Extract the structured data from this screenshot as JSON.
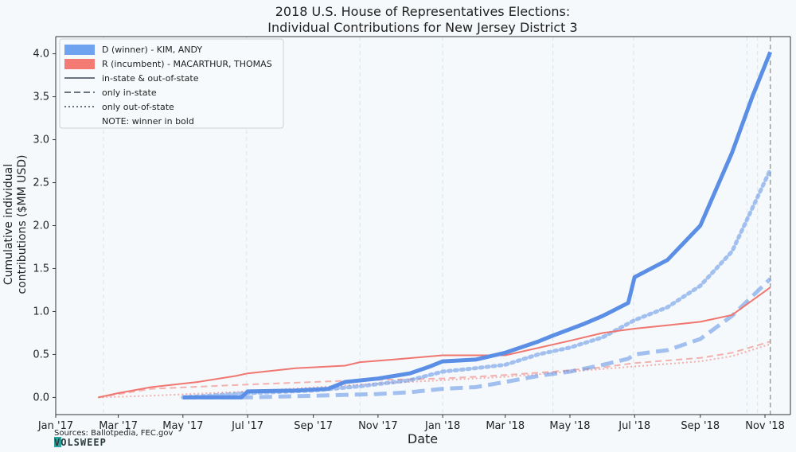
{
  "chart_data": {
    "type": "line",
    "title": "2018 U.S. House of Representatives Elections:",
    "subtitle": "Individual Contributions for New Jersey District 3",
    "xlabel": "Date",
    "ylabel_line1": "Cumulative individual",
    "ylabel_line2": "contributions ($MM USD)",
    "xlim": [
      "2017-01-01",
      "2018-11-25"
    ],
    "ylim": [
      -0.2,
      4.2
    ],
    "x_ticks": [
      {
        "date": "2017-01-01",
        "label": "Jan '17"
      },
      {
        "date": "2017-03-01",
        "label": "Mar '17"
      },
      {
        "date": "2017-05-01",
        "label": "May '17"
      },
      {
        "date": "2017-07-01",
        "label": "Jul '17"
      },
      {
        "date": "2017-09-01",
        "label": "Sep '17"
      },
      {
        "date": "2017-11-01",
        "label": "Nov '17"
      },
      {
        "date": "2018-01-01",
        "label": "Jan '18"
      },
      {
        "date": "2018-03-01",
        "label": "Mar '18"
      },
      {
        "date": "2018-05-01",
        "label": "May '18"
      },
      {
        "date": "2018-07-01",
        "label": "Jul '18"
      },
      {
        "date": "2018-09-01",
        "label": "Sep '18"
      },
      {
        "date": "2018-11-01",
        "label": "Nov '18"
      }
    ],
    "y_ticks": [
      {
        "value": 0.0,
        "label": "0.0"
      },
      {
        "value": 0.5,
        "label": "0.5"
      },
      {
        "value": 1.0,
        "label": "1.0"
      },
      {
        "value": 1.5,
        "label": "1.5"
      },
      {
        "value": 2.0,
        "label": "2.0"
      },
      {
        "value": 2.5,
        "label": "2.5"
      },
      {
        "value": 3.0,
        "label": "3.0"
      },
      {
        "value": 3.5,
        "label": "3.5"
      },
      {
        "value": 4.0,
        "label": "4.0"
      }
    ],
    "reference_lines": [
      "2017-02-15",
      "2017-06-30",
      "2017-10-15",
      "2018-01-01",
      "2018-04-15",
      "2018-06-30",
      "2018-10-15",
      "2018-10-25"
    ],
    "election_date": "2018-11-06",
    "colors": {
      "D": "#5b8fe6",
      "R": "#f07670"
    },
    "legend": {
      "position": "upper-left",
      "items": [
        {
          "label": "D (winner) - KIM, ANDY",
          "style": "patch",
          "color": "#6fa2ef"
        },
        {
          "label": "R (incumbent) - MACARTHUR, THOMAS",
          "style": "patch",
          "color": "#f47a74"
        },
        {
          "label": "in-state & out-of-state",
          "style": "solid"
        },
        {
          "label": "only in-state",
          "style": "dashed"
        },
        {
          "label": "only out-of-state",
          "style": "dotted"
        },
        {
          "label": "NOTE: winner in bold",
          "style": "none"
        }
      ]
    },
    "series": [
      {
        "party": "D",
        "kind": "total",
        "x": [
          "2017-05-01",
          "2017-06-25",
          "2017-07-01",
          "2017-08-15",
          "2017-09-15",
          "2017-10-01",
          "2017-11-01",
          "2017-12-01",
          "2017-12-20",
          "2018-01-01",
          "2018-02-01",
          "2018-03-01",
          "2018-04-01",
          "2018-04-15",
          "2018-05-15",
          "2018-06-01",
          "2018-06-25",
          "2018-07-01",
          "2018-08-01",
          "2018-09-01",
          "2018-10-01",
          "2018-10-20",
          "2018-11-06"
        ],
        "values": [
          0.0,
          0.0,
          0.07,
          0.08,
          0.1,
          0.18,
          0.22,
          0.28,
          0.36,
          0.42,
          0.44,
          0.52,
          0.65,
          0.72,
          0.86,
          0.95,
          1.1,
          1.4,
          1.6,
          2.0,
          2.85,
          3.5,
          4.02
        ]
      },
      {
        "party": "D",
        "kind": "in-state",
        "x": [
          "2017-05-01",
          "2017-07-01",
          "2017-09-01",
          "2017-11-01",
          "2017-12-01",
          "2018-01-01",
          "2018-02-01",
          "2018-03-01",
          "2018-04-01",
          "2018-05-01",
          "2018-06-01",
          "2018-06-25",
          "2018-07-01",
          "2018-08-01",
          "2018-09-01",
          "2018-10-01",
          "2018-11-06"
        ],
        "values": [
          0.0,
          0.0,
          0.02,
          0.04,
          0.06,
          0.1,
          0.12,
          0.18,
          0.25,
          0.3,
          0.38,
          0.45,
          0.5,
          0.55,
          0.68,
          0.95,
          1.38
        ]
      },
      {
        "party": "D",
        "kind": "out-of-state",
        "x": [
          "2017-05-01",
          "2017-07-01",
          "2017-09-01",
          "2017-10-15",
          "2017-12-01",
          "2018-01-01",
          "2018-02-01",
          "2018-03-01",
          "2018-04-01",
          "2018-05-01",
          "2018-06-01",
          "2018-07-01",
          "2018-08-01",
          "2018-09-01",
          "2018-10-01",
          "2018-11-06"
        ],
        "values": [
          0.0,
          0.05,
          0.08,
          0.13,
          0.2,
          0.3,
          0.34,
          0.38,
          0.5,
          0.58,
          0.7,
          0.9,
          1.05,
          1.3,
          1.7,
          2.65
        ]
      },
      {
        "party": "R",
        "kind": "total",
        "x": [
          "2017-02-10",
          "2017-03-01",
          "2017-04-01",
          "2017-05-15",
          "2017-06-20",
          "2017-07-01",
          "2017-08-15",
          "2017-10-01",
          "2017-10-15",
          "2017-11-15",
          "2018-01-01",
          "2018-03-01",
          "2018-05-01",
          "2018-06-01",
          "2018-07-01",
          "2018-08-01",
          "2018-09-01",
          "2018-10-01",
          "2018-11-06"
        ],
        "values": [
          0.0,
          0.05,
          0.12,
          0.18,
          0.25,
          0.28,
          0.34,
          0.37,
          0.41,
          0.44,
          0.49,
          0.49,
          0.66,
          0.75,
          0.8,
          0.84,
          0.88,
          0.96,
          1.28
        ]
      },
      {
        "party": "R",
        "kind": "in-state",
        "x": [
          "2017-02-10",
          "2017-04-01",
          "2017-07-01",
          "2017-09-01",
          "2017-10-15",
          "2018-01-01",
          "2018-03-01",
          "2018-04-15",
          "2018-06-01",
          "2018-07-01",
          "2018-09-01",
          "2018-10-01",
          "2018-11-06"
        ],
        "values": [
          0.0,
          0.1,
          0.15,
          0.18,
          0.2,
          0.22,
          0.26,
          0.3,
          0.35,
          0.4,
          0.46,
          0.52,
          0.65
        ]
      },
      {
        "party": "R",
        "kind": "out-of-state",
        "x": [
          "2017-02-10",
          "2017-04-01",
          "2017-07-01",
          "2017-10-15",
          "2018-01-01",
          "2018-03-01",
          "2018-05-01",
          "2018-07-01",
          "2018-09-01",
          "2018-10-01",
          "2018-11-06"
        ],
        "values": [
          0.0,
          0.02,
          0.07,
          0.15,
          0.2,
          0.24,
          0.3,
          0.36,
          0.42,
          0.48,
          0.62
        ]
      }
    ],
    "source": "Sources: Ballotpedia, FEC.gov",
    "logo": "VOLSWEEP"
  }
}
